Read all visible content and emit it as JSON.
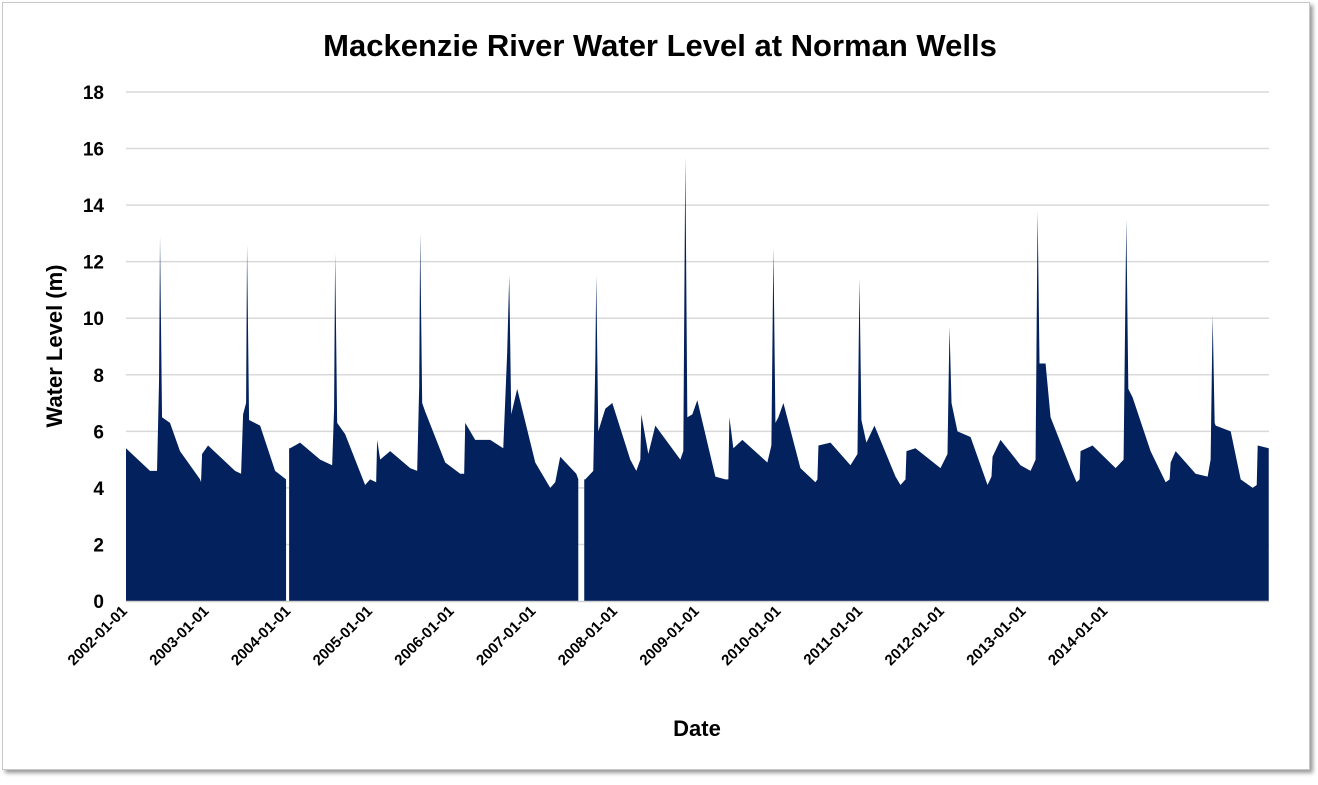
{
  "chart_data": {
    "type": "bar",
    "title": "Mackenzie River Water Level at Norman Wells",
    "xlabel": "Date",
    "ylabel": "Water Level (m)",
    "ylim": [
      0,
      18
    ],
    "y_ticks": [
      0,
      2,
      4,
      6,
      8,
      10,
      12,
      14,
      16,
      18
    ],
    "xlim": [
      2002.0,
      2015.04
    ],
    "x_tick_labels": [
      "2002-01-01",
      "2003-01-01",
      "2004-01-01",
      "2005-01-01",
      "2006-01-01",
      "2007-01-01",
      "2008-01-01",
      "2009-01-01",
      "2010-01-01",
      "2011-01-01",
      "2012-01-01",
      "2013-01-01",
      "2014-01-01"
    ],
    "grid": true,
    "legend": "none",
    "bar_color": "#03215C",
    "x_units": "decimal year",
    "series": [
      {
        "segments": [
          [
            [
              2002.0,
              5.4
            ],
            [
              2002.274,
              4.6
            ],
            [
              2002.354,
              4.6
            ],
            [
              2002.377,
              7.8
            ],
            [
              2002.388,
              12.9
            ],
            [
              2002.411,
              6.5
            ],
            [
              2002.502,
              6.3
            ],
            [
              2002.616,
              5.3
            ],
            [
              2002.731,
              4.8
            ],
            [
              2002.845,
              4.3
            ],
            [
              2002.856,
              4.2
            ],
            [
              2002.868,
              5.2
            ],
            [
              2002.936,
              5.5
            ],
            [
              2003.073,
              5.1
            ],
            [
              2003.244,
              4.6
            ],
            [
              2003.313,
              4.5
            ],
            [
              2003.336,
              6.6
            ],
            [
              2003.37,
              7.0
            ],
            [
              2003.381,
              12.6
            ],
            [
              2003.404,
              6.4
            ],
            [
              2003.53,
              6.2
            ],
            [
              2003.701,
              4.6
            ],
            [
              2003.826,
              4.3
            ]
          ],
          [
            [
              2003.861,
              5.4
            ],
            [
              2003.872,
              5.4
            ],
            [
              2003.986,
              5.6
            ],
            [
              2004.215,
              5.0
            ],
            [
              2004.352,
              4.8
            ],
            [
              2004.374,
              6.8
            ],
            [
              2004.386,
              12.3
            ],
            [
              2004.409,
              6.3
            ],
            [
              2004.5,
              5.9
            ],
            [
              2004.728,
              4.1
            ],
            [
              2004.785,
              4.3
            ],
            [
              2004.854,
              4.2
            ],
            [
              2004.865,
              5.7
            ],
            [
              2004.9,
              5.0
            ],
            [
              2005.014,
              5.3
            ],
            [
              2005.242,
              4.7
            ],
            [
              2005.322,
              4.6
            ],
            [
              2005.345,
              7.6
            ],
            [
              2005.356,
              13.0
            ],
            [
              2005.379,
              7.0
            ],
            [
              2005.413,
              6.7
            ],
            [
              2005.642,
              4.9
            ],
            [
              2005.813,
              4.5
            ],
            [
              2005.858,
              4.5
            ],
            [
              2005.87,
              6.3
            ],
            [
              2005.984,
              5.7
            ],
            [
              2006.155,
              5.7
            ],
            [
              2006.304,
              5.4
            ],
            [
              2006.349,
              8.8
            ],
            [
              2006.372,
              11.5
            ],
            [
              2006.395,
              6.6
            ],
            [
              2006.463,
              7.5
            ],
            [
              2006.669,
              4.9
            ],
            [
              2006.84,
              4.0
            ],
            [
              2006.897,
              4.2
            ],
            [
              2006.954,
              5.1
            ],
            [
              2007.137,
              4.5
            ],
            [
              2007.16,
              4.3
            ]
          ],
          [
            [
              2007.228,
              4.3
            ],
            [
              2007.24,
              4.3
            ],
            [
              2007.331,
              4.6
            ],
            [
              2007.354,
              8.4
            ],
            [
              2007.365,
              11.5
            ],
            [
              2007.388,
              6.0
            ],
            [
              2007.468,
              6.8
            ],
            [
              2007.548,
              7.0
            ],
            [
              2007.753,
              5.0
            ],
            [
              2007.822,
              4.6
            ],
            [
              2007.868,
              5.0
            ],
            [
              2007.879,
              6.6
            ],
            [
              2007.959,
              5.2
            ],
            [
              2008.039,
              6.2
            ],
            [
              2008.324,
              5.0
            ],
            [
              2008.358,
              5.3
            ],
            [
              2008.381,
              15.7
            ],
            [
              2008.404,
              6.5
            ],
            [
              2008.461,
              6.6
            ],
            [
              2008.518,
              7.1
            ],
            [
              2008.724,
              4.4
            ],
            [
              2008.838,
              4.3
            ],
            [
              2008.872,
              4.3
            ],
            [
              2008.884,
              6.5
            ],
            [
              2008.929,
              5.4
            ],
            [
              2009.032,
              5.7
            ],
            [
              2009.317,
              4.9
            ],
            [
              2009.363,
              5.5
            ],
            [
              2009.386,
              12.5
            ],
            [
              2009.409,
              6.3
            ],
            [
              2009.443,
              6.5
            ],
            [
              2009.5,
              7.0
            ],
            [
              2009.694,
              4.7
            ],
            [
              2009.865,
              4.2
            ],
            [
              2009.888,
              4.3
            ],
            [
              2009.9,
              5.5
            ],
            [
              2010.037,
              5.6
            ],
            [
              2010.265,
              4.8
            ],
            [
              2010.345,
              5.2
            ],
            [
              2010.368,
              11.4
            ],
            [
              2010.39,
              6.4
            ],
            [
              2010.447,
              5.6
            ],
            [
              2010.539,
              6.2
            ],
            [
              2010.779,
              4.4
            ],
            [
              2010.836,
              4.1
            ],
            [
              2010.893,
              4.3
            ],
            [
              2010.904,
              5.3
            ],
            [
              2011.007,
              5.4
            ],
            [
              2011.292,
              4.7
            ],
            [
              2011.372,
              5.2
            ],
            [
              2011.395,
              9.7
            ],
            [
              2011.418,
              7.0
            ],
            [
              2011.486,
              6.0
            ],
            [
              2011.635,
              5.8
            ],
            [
              2011.829,
              4.1
            ],
            [
              2011.874,
              4.4
            ],
            [
              2011.886,
              5.1
            ],
            [
              2011.977,
              5.7
            ],
            [
              2012.205,
              4.8
            ],
            [
              2012.32,
              4.6
            ],
            [
              2012.377,
              5.0
            ],
            [
              2012.4,
              13.8
            ],
            [
              2012.422,
              8.4
            ],
            [
              2012.491,
              8.4
            ],
            [
              2012.548,
              6.5
            ],
            [
              2012.776,
              4.7
            ],
            [
              2012.845,
              4.2
            ],
            [
              2012.879,
              4.3
            ],
            [
              2012.89,
              5.3
            ],
            [
              2013.027,
              5.5
            ],
            [
              2013.29,
              4.7
            ],
            [
              2013.381,
              5.0
            ],
            [
              2013.412,
              13.5
            ],
            [
              2013.435,
              7.5
            ],
            [
              2013.484,
              7.2
            ],
            [
              2013.689,
              5.3
            ],
            [
              2013.861,
              4.2
            ],
            [
              2013.906,
              4.3
            ],
            [
              2013.918,
              4.9
            ],
            [
              2013.975,
              5.3
            ],
            [
              2014.203,
              4.5
            ],
            [
              2014.34,
              4.4
            ],
            [
              2014.374,
              5.0
            ],
            [
              2014.397,
              10.1
            ],
            [
              2014.42,
              6.3
            ],
            [
              2014.432,
              6.2
            ],
            [
              2014.603,
              6.0
            ],
            [
              2014.717,
              4.3
            ],
            [
              2014.854,
              4.0
            ],
            [
              2014.9,
              4.1
            ],
            [
              2014.911,
              5.5
            ],
            [
              2015.037,
              5.4
            ]
          ]
        ]
      }
    ]
  }
}
